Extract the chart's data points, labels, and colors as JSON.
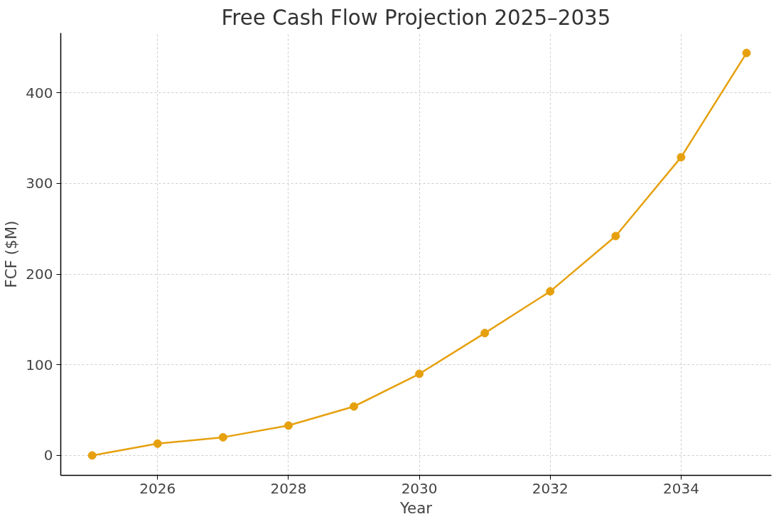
{
  "chart_data": {
    "type": "line",
    "title": "Free Cash Flow Projection 2025–2035",
    "xlabel": "Year",
    "ylabel": "FCF ($M)",
    "x": [
      2025,
      2026,
      2027,
      2028,
      2029,
      2030,
      2031,
      2032,
      2033,
      2034,
      2035
    ],
    "series": [
      {
        "color": "#e6a00e",
        "values": [
          0,
          13,
          20,
          33,
          54,
          90,
          135,
          181,
          242,
          329,
          444
        ]
      }
    ],
    "xlim": [
      2024.52,
      2035.38
    ],
    "ylim": [
      -22,
      466
    ],
    "xticks": [
      2026,
      2028,
      2030,
      2032,
      2034
    ],
    "yticks": [
      0,
      100,
      200,
      300,
      400
    ],
    "grid": true,
    "marker": "circle",
    "line_style": "solid"
  }
}
